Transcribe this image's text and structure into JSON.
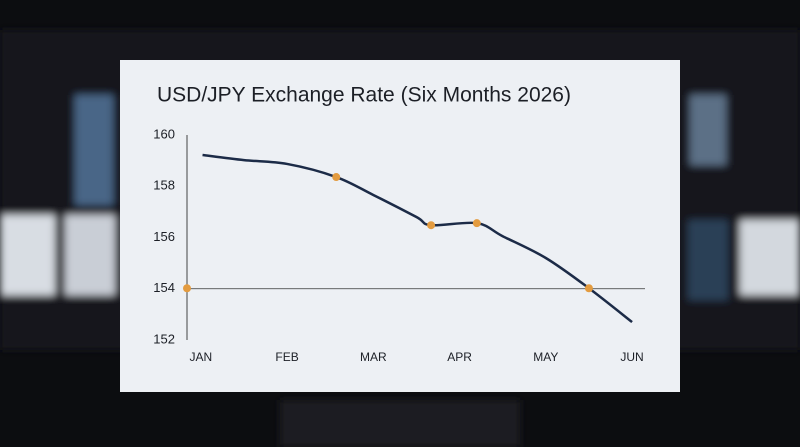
{
  "chart_data": {
    "type": "line",
    "title": "USD/JPY Exchange Rate (Six Months 2026)",
    "x": [
      0.02,
      0.5,
      1.0,
      1.57,
      2.0,
      2.5,
      2.67,
      3.2,
      3.5,
      4.0,
      4.5,
      5.0
    ],
    "series": [
      {
        "color": "#1c2b47",
        "values": [
          159.22,
          159.02,
          158.87,
          158.36,
          157.66,
          156.8,
          156.48,
          156.56,
          156.05,
          155.2,
          154.02,
          152.7
        ]
      }
    ],
    "highlights": {
      "color": "#e39b3f",
      "x": [
        -0.16,
        1.57,
        2.67,
        3.2,
        4.5
      ],
      "values": [
        154.02,
        158.36,
        156.48,
        156.56,
        154.02
      ]
    },
    "reference_line": 154,
    "xlim": [
      -0.16,
      5.15
    ],
    "xticks": [
      {
        "value": 0,
        "label": "JAN"
      },
      {
        "value": 1,
        "label": "FEB"
      },
      {
        "value": 2,
        "label": "MAR"
      },
      {
        "value": 3,
        "label": "APR"
      },
      {
        "value": 4,
        "label": "MAY"
      },
      {
        "value": 5,
        "label": "JUN"
      }
    ],
    "ylim": [
      152,
      160
    ],
    "yticks": [
      152,
      154,
      156,
      158,
      160
    ]
  }
}
